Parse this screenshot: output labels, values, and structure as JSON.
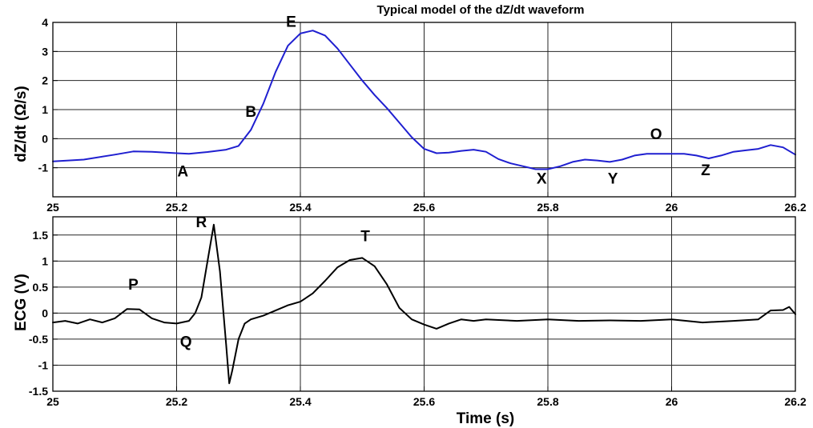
{
  "colors": {
    "dzdt_line": "#1f1fd0",
    "ecg_line": "#000000",
    "grid": "#262626"
  },
  "chart_data": [
    {
      "type": "line",
      "title": "Typical model of the dZ/dt waveform",
      "xlabel": "",
      "ylabel": "dZ/dt (Ω/s)",
      "xlim": [
        25,
        26.2
      ],
      "ylim": [
        -2,
        4
      ],
      "xticks": [
        25,
        25.2,
        25.4,
        25.6,
        25.8,
        26,
        26.2
      ],
      "xtick_labels": [
        "25",
        "25.2",
        "25.4",
        "25.6",
        "25.8",
        "26",
        "26.2"
      ],
      "yticks": [
        -1,
        0,
        1,
        2,
        3,
        4
      ],
      "ytick_labels": [
        "-1",
        "0",
        "1",
        "2",
        "3",
        "4"
      ],
      "grid": true,
      "series": [
        {
          "x": [
            25.0,
            25.05,
            25.1,
            25.13,
            25.16,
            25.2,
            25.22,
            25.25,
            25.28,
            25.3,
            25.32,
            25.34,
            25.36,
            25.38,
            25.4,
            25.42,
            25.44,
            25.46,
            25.48,
            25.5,
            25.52,
            25.54,
            25.56,
            25.58,
            25.6,
            25.62,
            25.64,
            25.66,
            25.68,
            25.7,
            25.72,
            25.74,
            25.76,
            25.78,
            25.8,
            25.82,
            25.84,
            25.86,
            25.88,
            25.9,
            25.92,
            25.94,
            25.96,
            25.98,
            26.0,
            26.02,
            26.04,
            26.06,
            26.08,
            26.1,
            26.12,
            26.14,
            26.16,
            26.18,
            26.2
          ],
          "y": [
            -0.78,
            -0.72,
            -0.55,
            -0.44,
            -0.45,
            -0.5,
            -0.52,
            -0.46,
            -0.38,
            -0.25,
            0.3,
            1.2,
            2.3,
            3.2,
            3.62,
            3.72,
            3.55,
            3.1,
            2.55,
            2.0,
            1.5,
            1.05,
            0.55,
            0.05,
            -0.35,
            -0.5,
            -0.48,
            -0.42,
            -0.38,
            -0.45,
            -0.7,
            -0.85,
            -0.95,
            -1.05,
            -1.05,
            -0.95,
            -0.8,
            -0.72,
            -0.75,
            -0.8,
            -0.72,
            -0.58,
            -0.52,
            -0.52,
            -0.52,
            -0.52,
            -0.58,
            -0.68,
            -0.58,
            -0.45,
            -0.4,
            -0.35,
            -0.22,
            -0.3,
            -0.55
          ]
        }
      ],
      "annotations": [
        {
          "text": "A",
          "x": 25.21,
          "y": -1.3
        },
        {
          "text": "B",
          "x": 25.32,
          "y": 0.75
        },
        {
          "text": "E",
          "x": 25.385,
          "y": 3.85
        },
        {
          "text": "X",
          "x": 25.79,
          "y": -1.55
        },
        {
          "text": "Y",
          "x": 25.905,
          "y": -1.55
        },
        {
          "text": "O",
          "x": 25.975,
          "y": -0.02
        },
        {
          "text": "Z",
          "x": 26.055,
          "y": -1.25
        }
      ]
    },
    {
      "type": "line",
      "title": "",
      "xlabel": "Time (s)",
      "ylabel": "ECG (V)",
      "xlim": [
        25,
        26.2
      ],
      "ylim": [
        -1.5,
        1.85
      ],
      "xticks": [
        25,
        25.2,
        25.4,
        25.6,
        25.8,
        26,
        26.2
      ],
      "xtick_labels": [
        "25",
        "25.2",
        "25.4",
        "25.6",
        "25.8",
        "26",
        "26.2"
      ],
      "yticks": [
        -1.5,
        -1,
        -0.5,
        0,
        0.5,
        1,
        1.5
      ],
      "ytick_labels": [
        "-1.5",
        "-1",
        "-0.5",
        "0",
        "0.5",
        "1",
        "1.5"
      ],
      "grid": true,
      "series": [
        {
          "x": [
            25.0,
            25.02,
            25.04,
            25.06,
            25.08,
            25.1,
            25.12,
            25.14,
            25.16,
            25.18,
            25.2,
            25.22,
            25.23,
            25.24,
            25.25,
            25.26,
            25.27,
            25.28,
            25.285,
            25.29,
            25.3,
            25.31,
            25.32,
            25.34,
            25.36,
            25.38,
            25.4,
            25.42,
            25.44,
            25.46,
            25.48,
            25.5,
            25.52,
            25.54,
            25.56,
            25.58,
            25.6,
            25.62,
            25.64,
            25.66,
            25.68,
            25.7,
            25.75,
            25.8,
            25.85,
            25.9,
            25.95,
            26.0,
            26.05,
            26.1,
            26.14,
            26.16,
            26.18,
            26.19,
            26.2
          ],
          "y": [
            -0.18,
            -0.15,
            -0.2,
            -0.12,
            -0.18,
            -0.1,
            0.08,
            0.07,
            -0.1,
            -0.18,
            -0.2,
            -0.15,
            0.0,
            0.3,
            1.0,
            1.7,
            0.8,
            -0.6,
            -1.35,
            -1.1,
            -0.5,
            -0.2,
            -0.12,
            -0.05,
            0.05,
            0.15,
            0.22,
            0.38,
            0.62,
            0.88,
            1.02,
            1.06,
            0.9,
            0.55,
            0.1,
            -0.12,
            -0.22,
            -0.3,
            -0.2,
            -0.12,
            -0.15,
            -0.12,
            -0.15,
            -0.12,
            -0.15,
            -0.14,
            -0.15,
            -0.12,
            -0.18,
            -0.15,
            -0.12,
            0.05,
            0.06,
            0.12,
            -0.02
          ]
        }
      ],
      "annotations": [
        {
          "text": "P",
          "x": 25.13,
          "y": 0.45
        },
        {
          "text": "R",
          "x": 25.24,
          "y": 1.65
        },
        {
          "text": "T",
          "x": 25.505,
          "y": 1.38
        },
        {
          "text": "Q",
          "x": 25.215,
          "y": -0.65
        }
      ]
    }
  ]
}
